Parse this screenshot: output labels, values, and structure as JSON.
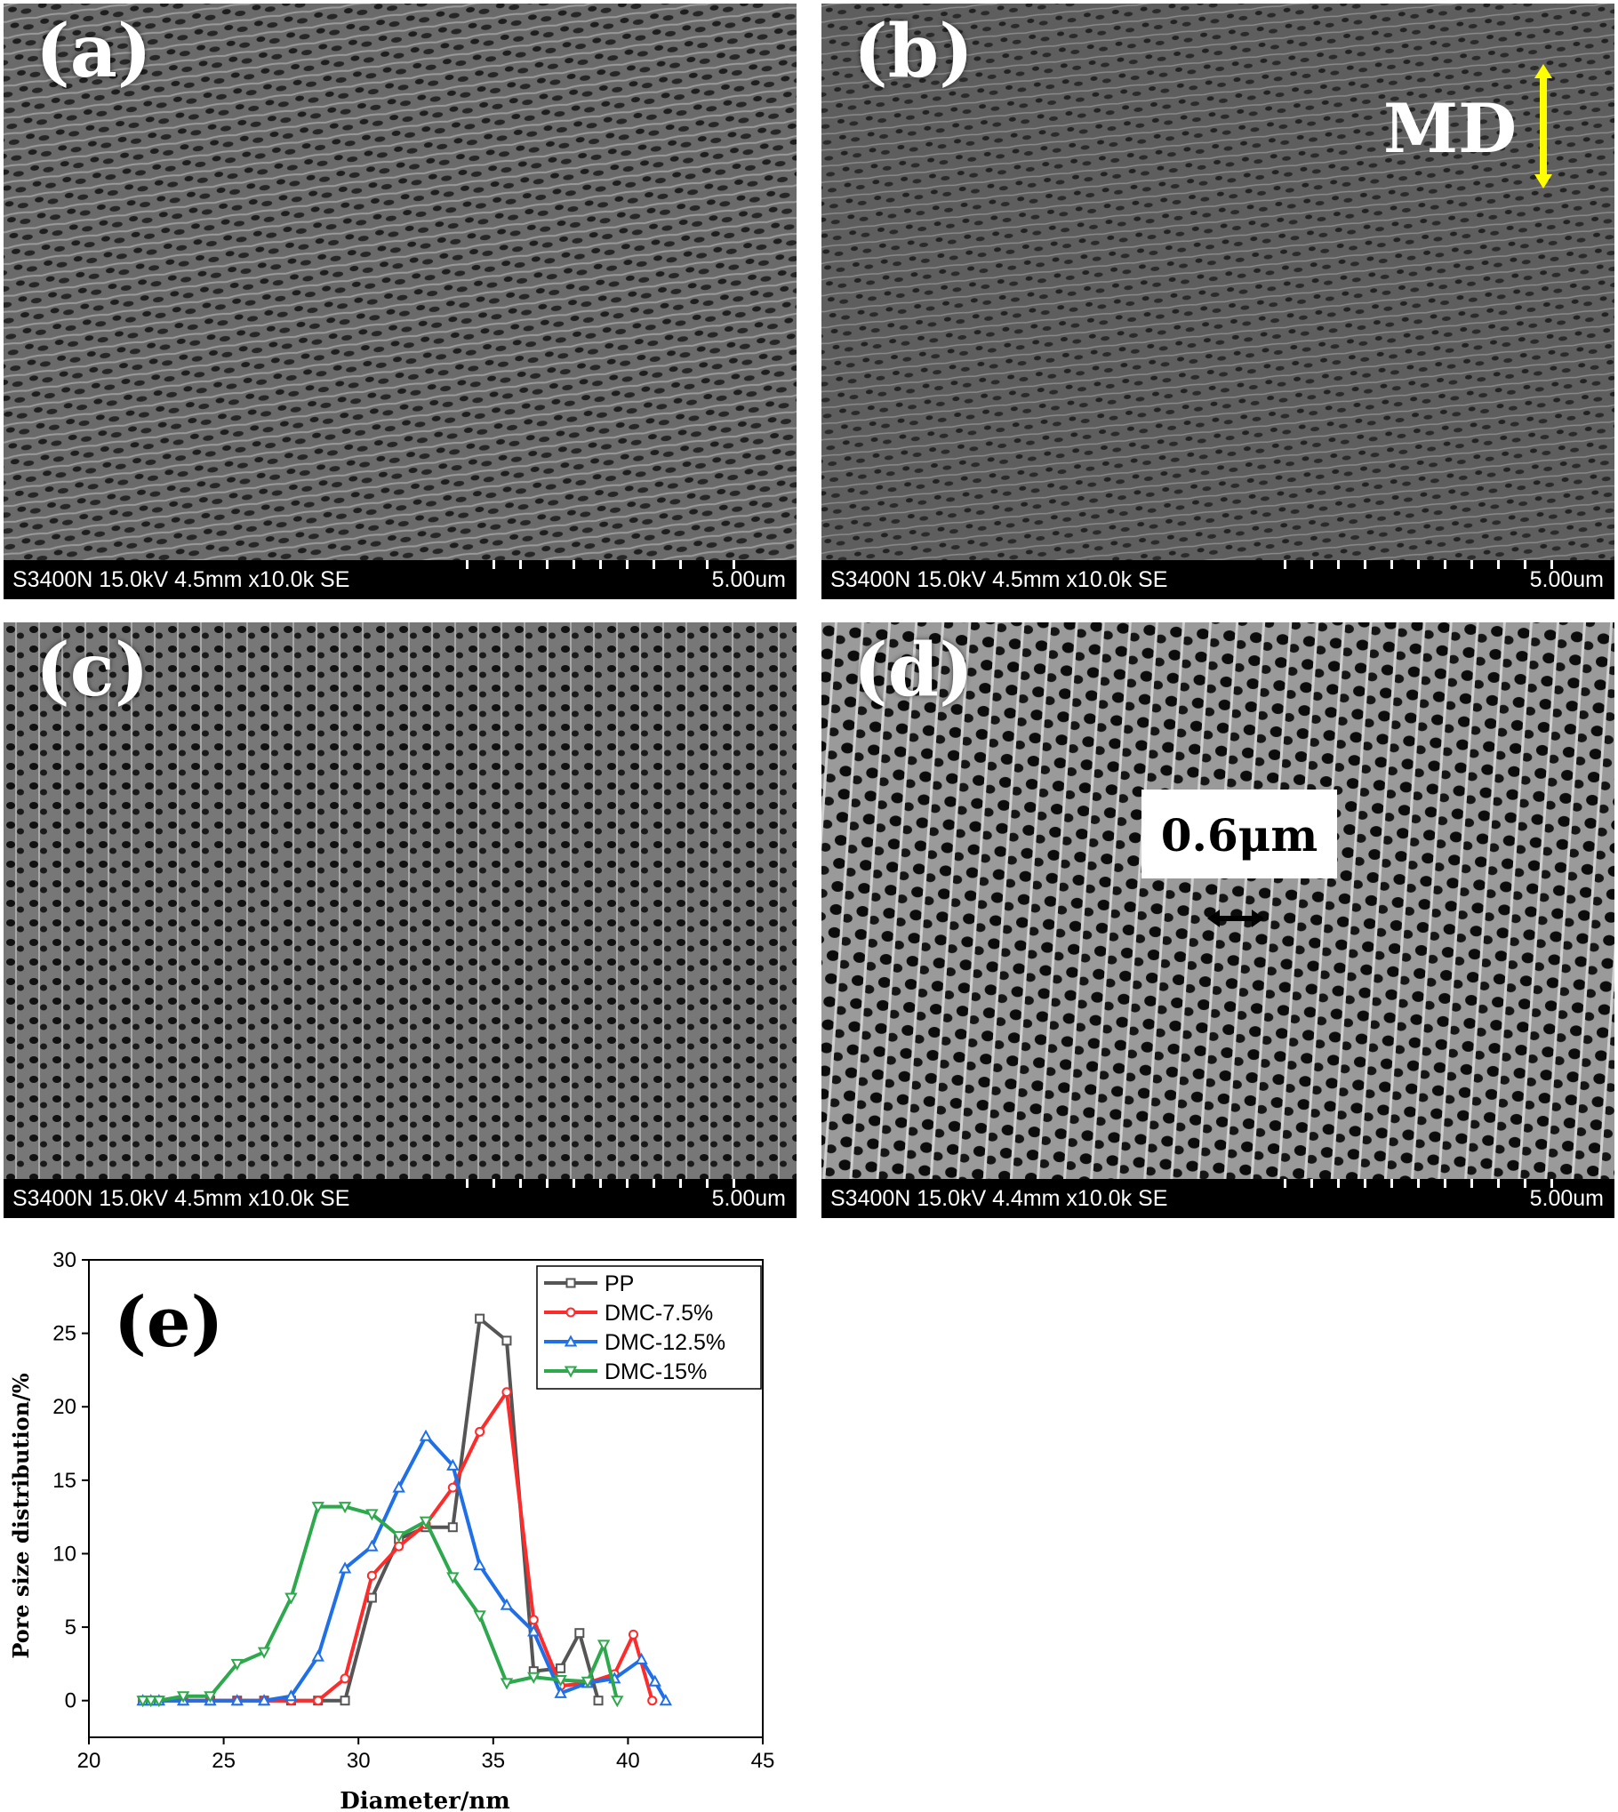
{
  "panels": [
    {
      "label": "(a)",
      "info": "S3400N 15.0kV 4.5mm x10.0k SE",
      "scale": "5.00um"
    },
    {
      "label": "(b)",
      "info": "S3400N 15.0kV 4.5mm x10.0k SE",
      "scale": "5.00um",
      "direction_label": "MD"
    },
    {
      "label": "(c)",
      "info": "S3400N 15.0kV 4.5mm x10.0k SE",
      "scale": "5.00um"
    },
    {
      "label": "(d)",
      "info": "S3400N 15.0kV 4.4mm x10.0k SE",
      "scale": "5.00um",
      "callout": "0.6μm"
    }
  ],
  "colors": {
    "arrow": "#ffff00"
  },
  "chart_data": {
    "type": "line",
    "panel_label": "(e)",
    "xlabel": "Diameter/nm",
    "ylabel": "Pore size distribution/%",
    "xlim": [
      20,
      45
    ],
    "ylim": [
      -2.5,
      30
    ],
    "xticks": [
      20,
      25,
      30,
      35,
      40,
      45
    ],
    "yticks": [
      0,
      5,
      10,
      15,
      20,
      25,
      30
    ],
    "legend_position": "top-right",
    "grid": false,
    "series": [
      {
        "name": "PP",
        "color": "#555555",
        "marker": "square",
        "x": [
          22,
          22.3,
          22.6,
          23.5,
          24.5,
          25.5,
          26.5,
          27.5,
          28.5,
          29.5,
          30.5,
          31.5,
          32.5,
          33.5,
          34.5,
          35.5,
          36.5,
          37.5,
          38.2,
          38.9
        ],
        "y": [
          0,
          0,
          0,
          0,
          0,
          0,
          0,
          0,
          0,
          0,
          7,
          11,
          11.8,
          11.8,
          26,
          24.5,
          2,
          2.2,
          4.6,
          0
        ]
      },
      {
        "name": "DMC-7.5%",
        "color": "#ff2a2a",
        "marker": "circle",
        "x": [
          22,
          22.3,
          22.6,
          23.5,
          24.5,
          25.5,
          26.5,
          27.5,
          28.5,
          29.5,
          30.5,
          31.5,
          32.5,
          33.5,
          34.5,
          35.5,
          36.5,
          37.5,
          38.5,
          39.5,
          40.2,
          40.9
        ],
        "y": [
          0,
          0,
          0,
          0,
          0,
          0,
          0,
          0,
          0,
          1.5,
          8.5,
          10.5,
          12,
          14.5,
          18.3,
          21,
          5.5,
          1,
          1.2,
          1.8,
          4.5,
          0
        ]
      },
      {
        "name": "DMC-12.5%",
        "color": "#1f6fe8",
        "marker": "triangle-up",
        "x": [
          22,
          22.3,
          22.6,
          23.5,
          24.5,
          25.5,
          26.5,
          27.5,
          28.5,
          29.5,
          30.5,
          31.5,
          32.5,
          33.5,
          34.5,
          35.5,
          36.5,
          37.5,
          38.5,
          39.5,
          40.5,
          41,
          41.4
        ],
        "y": [
          0,
          0,
          0,
          0,
          0,
          0,
          0,
          0.3,
          3,
          9,
          10.5,
          14.5,
          18,
          16,
          9.2,
          6.5,
          4.7,
          0.5,
          1.2,
          1.5,
          2.8,
          1.3,
          0
        ]
      },
      {
        "name": "DMC-15%",
        "color": "#2ea84c",
        "marker": "triangle-down",
        "x": [
          22,
          22.3,
          22.6,
          23.5,
          24.5,
          25.5,
          26.5,
          27.5,
          28.5,
          29.5,
          30.5,
          31.5,
          32.5,
          33.5,
          34.5,
          35.5,
          36.5,
          37.5,
          38.5,
          39.1,
          39.6
        ],
        "y": [
          0,
          0,
          0,
          0.3,
          0.3,
          2.5,
          3.3,
          7,
          13.2,
          13.2,
          12.7,
          11.2,
          12.2,
          8.4,
          5.8,
          1.2,
          1.6,
          1.4,
          1.3,
          3.8,
          0
        ]
      }
    ]
  }
}
